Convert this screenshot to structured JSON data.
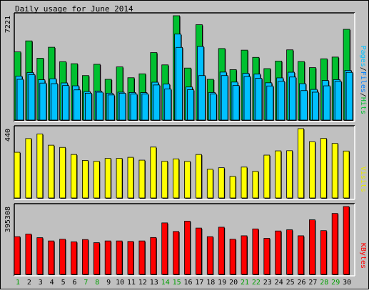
{
  "chart_data": {
    "title": "Daily usage for June 2014",
    "days": [
      "1",
      "2",
      "3",
      "4",
      "5",
      "6",
      "7",
      "8",
      "9",
      "10",
      "11",
      "12",
      "13",
      "14",
      "15",
      "16",
      "17",
      "18",
      "19",
      "20",
      "21",
      "22",
      "23",
      "24",
      "25",
      "26",
      "27",
      "28",
      "29",
      "30"
    ],
    "weekend_days": [
      "1",
      "7",
      "8",
      "14",
      "15",
      "21",
      "22",
      "28",
      "29"
    ],
    "colors": {
      "background": "#C0C0C0",
      "hits": "#00C030",
      "files": "#00C0FF",
      "pages": "#00C0FF",
      "visits": "#FFFF00",
      "kbytes": "#FF0000",
      "weekday_label": "#000000",
      "weekend_label": "#00A000",
      "hits_legend": "#00C030",
      "files_legend": "#0080FF",
      "pages_legend": "#00C0FF",
      "visits_legend": "#E8E800",
      "kbytes_legend": "#FF0000"
    },
    "panels": [
      {
        "type": "bar",
        "name": "hits-files-pages",
        "ymax": 7221,
        "ymax_label": "7221",
        "legend": [
          "Pages",
          "Files",
          "Hits"
        ],
        "separator": "/",
        "series": [
          {
            "name": "Hits",
            "values": [
              4720,
              5480,
              4280,
              5040,
              4040,
              3900,
              3080,
              3860,
              2820,
              3680,
              2930,
              3200,
              4670,
              3820,
              7221,
              3600,
              6600,
              2820,
              4950,
              3490,
              4840,
              4340,
              3560,
              4080,
              4860,
              4050,
              3630,
              4240,
              4360,
              6280
            ]
          },
          {
            "name": "Files",
            "values": [
              3040,
              3290,
              2790,
              2860,
              2570,
              2370,
              1970,
              2010,
              1860,
              1930,
              1910,
              1900,
              2620,
              2490,
              5950,
              2290,
              5090,
              1910,
              3320,
              2630,
              3230,
              3180,
              2580,
              2920,
              3310,
              2520,
              2120,
              2740,
              2800,
              3440
            ]
          },
          {
            "name": "Pages",
            "values": [
              2820,
              3150,
              2560,
              2520,
              2390,
              2090,
              1860,
              1930,
              1740,
              1860,
              1800,
              1800,
              2430,
              2150,
              5030,
              2100,
              3080,
              1800,
              3080,
              2390,
              3010,
              2890,
              2360,
              2680,
              2980,
              2040,
              1930,
              2370,
              2680,
              3300
            ]
          }
        ]
      },
      {
        "type": "bar",
        "name": "visits",
        "ymax": 440,
        "ymax_label": "440",
        "legend": [
          "Visits"
        ],
        "series": [
          {
            "name": "Visits",
            "values": [
              290,
              377,
              406,
              335,
              321,
              276,
              238,
              233,
              251,
              251,
              258,
              240,
              323,
              233,
              248,
              232,
              276,
              182,
              192,
              137,
              196,
              169,
              272,
              299,
              300,
              440,
              357,
              378,
              346,
              298
            ]
          }
        ]
      },
      {
        "type": "bar",
        "name": "kbytes",
        "ymax": 395308,
        "ymax_label": "395308",
        "legend": [
          "KBytes"
        ],
        "series": [
          {
            "name": "KBytes",
            "values": [
              220000,
              235000,
              214000,
              195000,
              205000,
              190000,
              203000,
              185000,
              195000,
              195000,
              192000,
              195000,
              215000,
              300000,
              250000,
              310000,
              270000,
              220000,
              275000,
              205000,
              225000,
              265000,
              210000,
              253000,
              260000,
              225000,
              318000,
              255000,
              355000,
              395308
            ]
          }
        ]
      }
    ]
  }
}
